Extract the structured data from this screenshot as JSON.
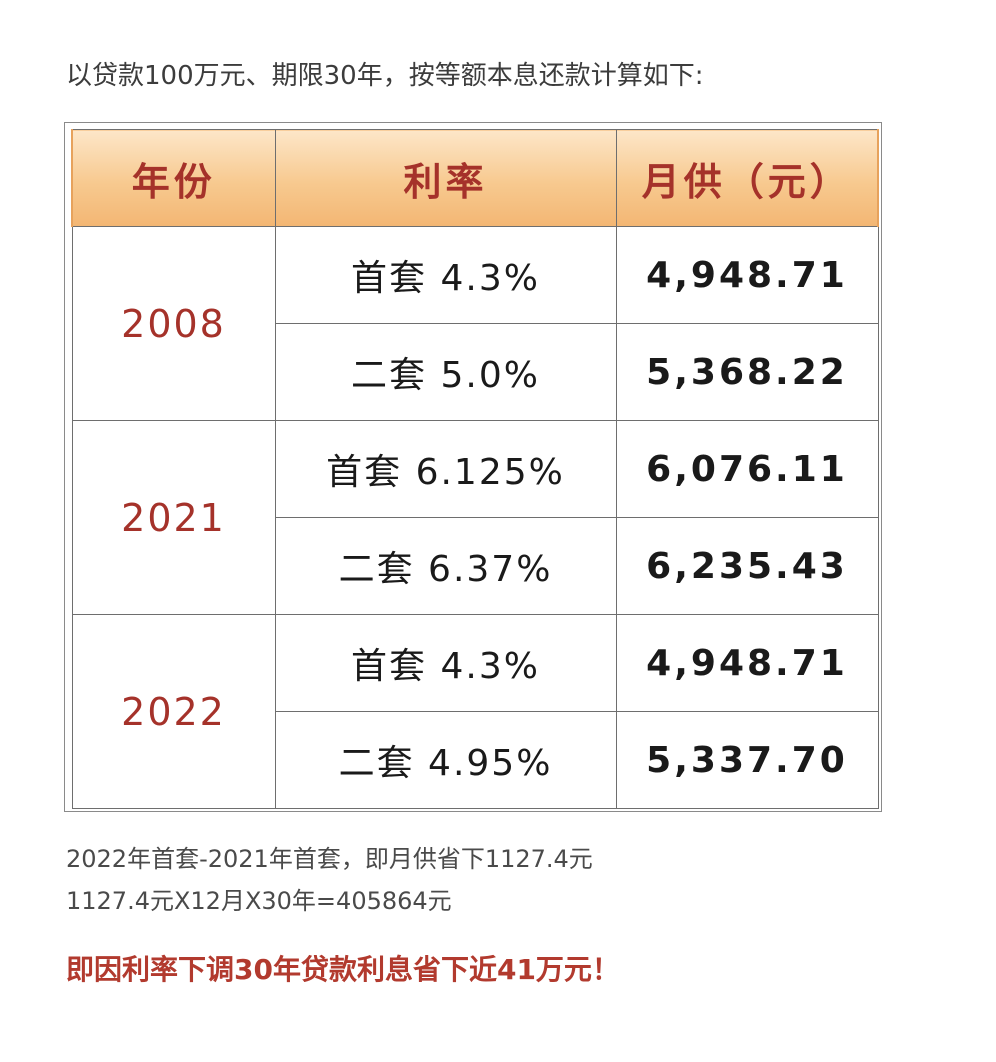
{
  "intro_text": "以贷款100万元、期限30年，按等额本息还款计算如下:",
  "table": {
    "headers": {
      "year": "年份",
      "rate": "利率",
      "payment": "月供（元）"
    },
    "groups": [
      {
        "year": "2008",
        "rows": [
          {
            "rate": "首套  4.3%",
            "payment": "4,948.71"
          },
          {
            "rate": "二套  5.0%",
            "payment": "5,368.22"
          }
        ]
      },
      {
        "year": "2021",
        "rows": [
          {
            "rate": "首套  6.125%",
            "payment": "6,076.11"
          },
          {
            "rate": "二套  6.37%",
            "payment": "6,235.43"
          }
        ]
      },
      {
        "year": "2022",
        "rows": [
          {
            "rate": "首套  4.3%",
            "payment": "4,948.71"
          },
          {
            "rate": "二套  4.95%",
            "payment": "5,337.70"
          }
        ]
      }
    ]
  },
  "calc_line_1": "2022年首套-2021年首套，即月供省下1127.4元",
  "calc_line_2": "1127.4元X12月X30年=405864元",
  "conclusion": "即因利率下调30年贷款利息省下近41万元！"
}
